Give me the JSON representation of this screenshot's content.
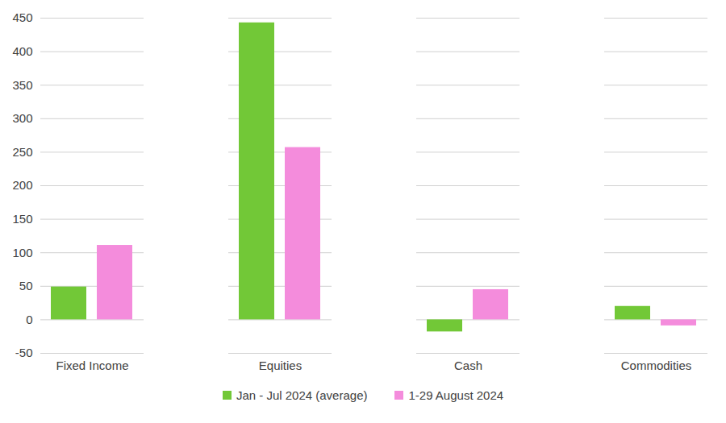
{
  "chart_data": {
    "type": "bar",
    "categories": [
      "Fixed Income",
      "Equities",
      "Cash",
      "Commodities"
    ],
    "series": [
      {
        "name": "Jan - Jul 2024 (average)",
        "color": "#72c837",
        "values": [
          49,
          443,
          -18,
          20
        ]
      },
      {
        "name": "1-29 August 2024",
        "color": "#f48cdc",
        "values": [
          111,
          257,
          45,
          -9
        ]
      }
    ],
    "ylim": [
      -50,
      450
    ],
    "yticks": [
      -50,
      0,
      50,
      100,
      150,
      200,
      250,
      300,
      350,
      400,
      450
    ],
    "grid": true,
    "legend": "bottom"
  }
}
